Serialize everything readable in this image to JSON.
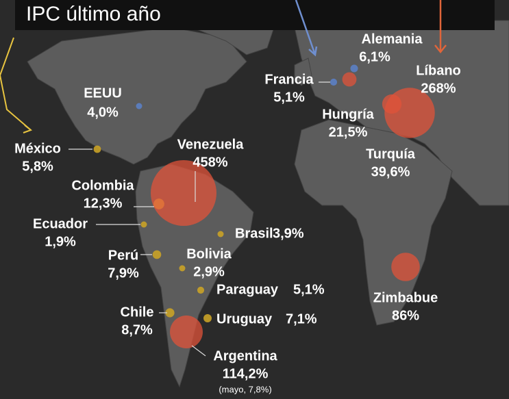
{
  "title": "IPC último año",
  "countries": [
    {
      "name": "EEUU",
      "value": 4.0,
      "label": "4,0%",
      "color": "#5b7fc4"
    },
    {
      "name": "México",
      "value": 5.8,
      "label": "5,8%",
      "color": "#c9a227"
    },
    {
      "name": "Venezuela",
      "value": 458,
      "label": "458%",
      "color": "#e0533a"
    },
    {
      "name": "Colombia",
      "value": 12.3,
      "label": "12,3%",
      "color": "#e0733a"
    },
    {
      "name": "Ecuador",
      "value": 1.9,
      "label": "1,9%",
      "color": "#c9a227"
    },
    {
      "name": "Perú",
      "value": 7.9,
      "label": "7,9%",
      "color": "#c9a227"
    },
    {
      "name": "Bolivia",
      "value": 2.9,
      "label": "2,9%",
      "color": "#c9a227"
    },
    {
      "name": "Brasil",
      "value": 3.9,
      "label": "3,9%",
      "color": "#c9a227"
    },
    {
      "name": "Paraguay",
      "value": 5.1,
      "label": "5,1%",
      "color": "#c9a227"
    },
    {
      "name": "Uruguay",
      "value": 7.1,
      "label": "7,1%",
      "color": "#c9a227"
    },
    {
      "name": "Chile",
      "value": 8.7,
      "label": "8,7%",
      "color": "#c9a227"
    },
    {
      "name": "Argentina",
      "value": 114.2,
      "label": "114,2%",
      "color": "#e0533a",
      "note": "(mayo, 7,8%)"
    },
    {
      "name": "Francia",
      "value": 5.1,
      "label": "5,1%",
      "color": "#5b7fc4"
    },
    {
      "name": "Alemania",
      "value": 6.1,
      "label": "6,1%",
      "color": "#5b7fc4"
    },
    {
      "name": "Hungría",
      "value": 21.5,
      "label": "21,5%",
      "color": "#e0533a"
    },
    {
      "name": "Líbano",
      "value": 268,
      "label": "268%",
      "color": "#e0533a"
    },
    {
      "name": "Turquía",
      "value": 39.6,
      "label": "39,6%",
      "color": "#e0533a"
    },
    {
      "name": "Zimbabue",
      "value": 86,
      "label": "86%",
      "color": "#e0533a"
    }
  ]
}
